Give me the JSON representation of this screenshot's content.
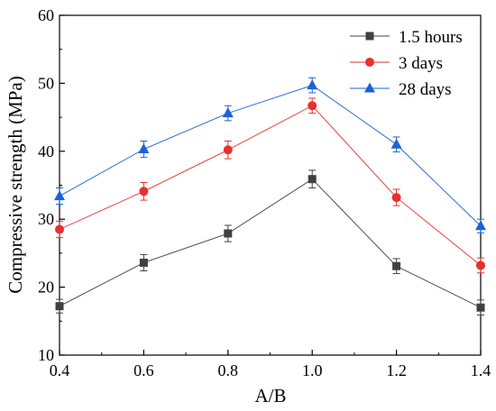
{
  "chart_data": {
    "type": "line",
    "title": "",
    "xlabel": "A/B",
    "ylabel": "Compressive strength (MPa)",
    "x": [
      0.4,
      0.6,
      0.8,
      1.0,
      1.2,
      1.4
    ],
    "x_tick_labels": [
      "0.4",
      "0.6",
      "0.8",
      "1.0",
      "1.2",
      "1.4"
    ],
    "y_tick_labels": [
      "10",
      "20",
      "30",
      "40",
      "50",
      "60"
    ],
    "xlim": [
      0.4,
      1.4
    ],
    "ylim": [
      10,
      60
    ],
    "grid": false,
    "legend_position": "top-right",
    "series": [
      {
        "name": "1.5 hours",
        "marker": "square",
        "color": "#404040",
        "values": [
          17.2,
          23.6,
          27.9,
          35.9,
          23.1,
          17.0
        ],
        "errors": [
          1.0,
          1.2,
          1.2,
          1.3,
          1.1,
          1.1
        ]
      },
      {
        "name": "3 days",
        "marker": "circle",
        "color": "#e8302e",
        "values": [
          28.5,
          34.1,
          40.2,
          46.7,
          33.2,
          23.2
        ],
        "errors": [
          1.2,
          1.3,
          1.3,
          1.1,
          1.2,
          1.1
        ]
      },
      {
        "name": "28 days",
        "marker": "triangle",
        "color": "#1a63d6",
        "values": [
          33.4,
          40.3,
          45.6,
          49.7,
          41.0,
          29.0
        ],
        "errors": [
          1.2,
          1.2,
          1.1,
          1.1,
          1.1,
          1.0
        ]
      }
    ]
  }
}
